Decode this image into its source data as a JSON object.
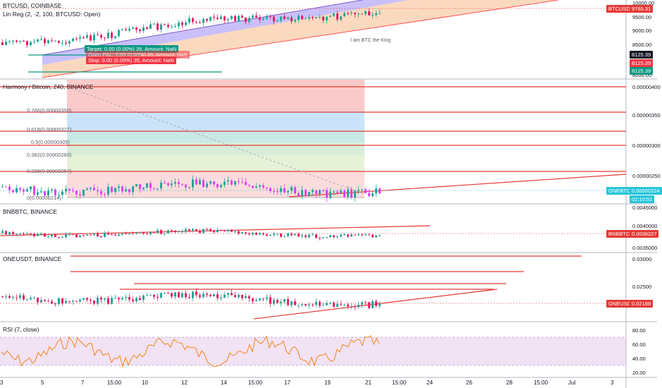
{
  "panels": {
    "btc": {
      "title": "BTCUSD, COINBASE",
      "indicator": "Lin Reg (2, -2, 100, BTCUSD: Open)",
      "watermark": "I am BTC the King",
      "price_tag": "BTCUSD",
      "price_value": "9765.31",
      "ticks": [
        "10000.00",
        "9500.00",
        "9000.00",
        "8500.00",
        "8000.00"
      ],
      "ref_tags": [
        "8125.39",
        "8125.39",
        "8125.39"
      ],
      "ref_colors": [
        "#131722",
        "#f23645",
        "#089981"
      ],
      "target_label": "Target: 0.00 (0.00%) 35, Amount: NaN",
      "stop_label": "Stop: 0.00 (0.00%) 35, Amount: NaN",
      "hidden_label": "Open P&L: 0.00 (0.00%) 35, Amount: NaN"
    },
    "harmony": {
      "title": "Harmony / Bitcoin, 240, BINANCE",
      "fib_levels": [
        "0.786(0.00000350)",
        "0.618(0.00000327)",
        "0.5(0.00000305)",
        "0.382(0.00000283)",
        "0.236(0.00000257)",
        "0(0.00000214)"
      ],
      "ticks": [
        "0.00000400",
        "0.00000350",
        "0.00000300",
        "0.00000250"
      ],
      "price_tag": "ONEBTC",
      "price_value": "0.00000224",
      "countdown": "02:10:51"
    },
    "bnb": {
      "title": "BNBBTC, BINANCE",
      "ticks": [
        "0.0045000",
        "0.0040000",
        "0.0035000"
      ],
      "price_tag": "BNBBTC",
      "price_value": "0.0038227"
    },
    "one": {
      "title": "ONEUSDT, BINANCE",
      "ticks": [
        "0.03000",
        "0.02500"
      ],
      "price_tag": "ONEUSDT",
      "price_value": "0.02188"
    },
    "rsi": {
      "title": "RSI (7, close)",
      "ticks": [
        "80.00",
        "60.00",
        "40.00",
        "20.00"
      ]
    }
  },
  "x_axis": [
    "3",
    "5",
    "7",
    "15:00",
    "10",
    "12",
    "14",
    "15:00",
    "17",
    "19",
    "21",
    "15:00",
    "24",
    "26",
    "28",
    "15:00",
    "Jul",
    "3"
  ],
  "colors": {
    "up": "#26a69a",
    "down": "#e91e63",
    "hline": "#e53935",
    "mag": "#e040fb"
  }
}
